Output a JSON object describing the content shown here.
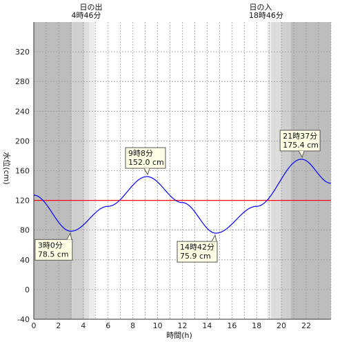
{
  "header": {
    "sunrise_label": "日の出",
    "sunrise_time": "4時46分",
    "sunset_label": "日の入",
    "sunset_time": "18時46分"
  },
  "chart_data": {
    "type": "line",
    "xlabel": "時間(h)",
    "ylabel": "水位(cm)",
    "xlim": [
      0,
      24
    ],
    "ylim": [
      -40,
      360
    ],
    "x_ticks": [
      0,
      2,
      4,
      6,
      8,
      10,
      12,
      14,
      16,
      18,
      20,
      22
    ],
    "y_ticks": [
      -40,
      0,
      40,
      80,
      120,
      160,
      200,
      240,
      280,
      320
    ],
    "grid": true,
    "reference_line": {
      "value": 120,
      "color": "#ff0000"
    },
    "series": [
      {
        "color": "#0000ff",
        "x": [
          0,
          3,
          6,
          9.133,
          12,
          14.7,
          18,
          21.617,
          24
        ],
        "values": [
          127,
          78.5,
          112,
          152.0,
          117,
          75.9,
          112,
          175.4,
          143
        ]
      }
    ],
    "extremes": [
      {
        "time": "3時0分",
        "level": "78.5 cm",
        "x": 3.0,
        "y": 78.5,
        "kind": "low"
      },
      {
        "time": "9時8分",
        "level": "152.0 cm",
        "x": 9.133,
        "y": 152.0,
        "kind": "high"
      },
      {
        "time": "14時42分",
        "level": "75.9 cm",
        "x": 14.7,
        "y": 75.9,
        "kind": "low"
      },
      {
        "time": "21時37分",
        "level": "175.4 cm",
        "x": 21.617,
        "y": 175.4,
        "kind": "high"
      }
    ],
    "daylight": {
      "sunrise_hour": 4.767,
      "sunset_hour": 18.767
    },
    "colors": {
      "night": "#bdbdbd",
      "twilight_dark": "#cfcfcf",
      "twilight_mid": "#dddddd",
      "twilight_light": "#ececec",
      "day": "#ffffff",
      "curve": "#0000ff",
      "mean_line": "#ff0000",
      "callout_fill": "#ffffe6"
    }
  }
}
